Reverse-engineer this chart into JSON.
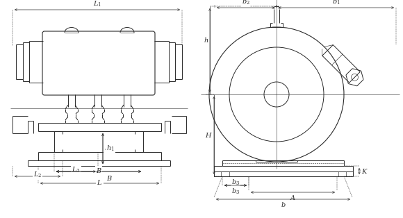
{
  "bg_color": "#ffffff",
  "line_color": "#2a2a2a",
  "lw": 0.7,
  "lw_thin": 0.45,
  "lw_dim": 0.5,
  "fig_width": 5.8,
  "fig_height": 3.14,
  "labels": {
    "L1": "$L_1$",
    "L2": "$L_2$",
    "L3": "$L_3$",
    "L": "$L$",
    "B": "$B$",
    "h1": "$h_1$",
    "b1": "$b_1$",
    "b2": "$b_2$",
    "b3": "$b_3$",
    "h": "$h$",
    "H": "$H$",
    "A": "$A$",
    "b": "$b$",
    "K": "$K$"
  }
}
